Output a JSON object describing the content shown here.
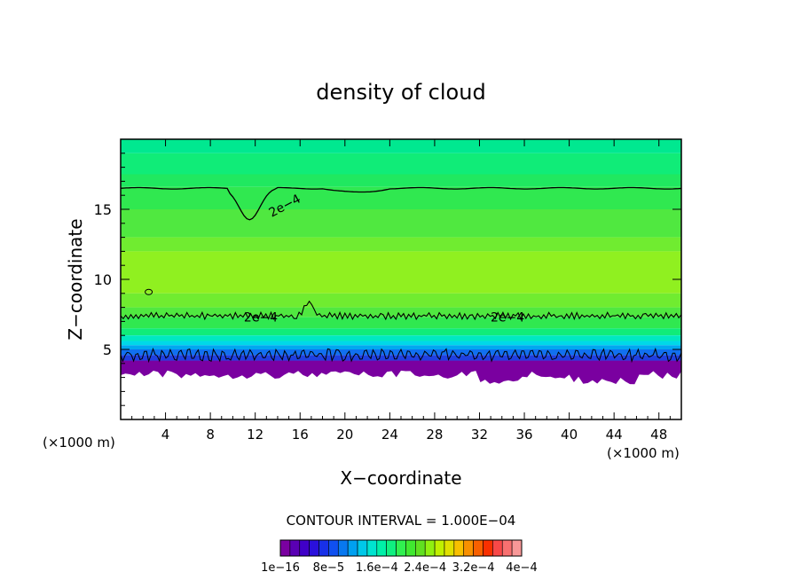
{
  "chart_data": {
    "type": "heatmap",
    "title": "density of cloud",
    "xlabel": "X−coordinate",
    "ylabel": "Z−coordinate",
    "x_unit_left": "(×1000 m)",
    "x_unit_right": "(×1000 m)",
    "xlim": [
      0,
      50
    ],
    "ylim": [
      0,
      20
    ],
    "x_ticks": [
      4,
      8,
      12,
      16,
      20,
      24,
      28,
      32,
      36,
      40,
      44,
      48
    ],
    "x_tick_labels": [
      "4",
      "8",
      "12",
      "16",
      "20",
      "24",
      "28",
      "32",
      "36",
      "40",
      "44",
      "48"
    ],
    "y_ticks": [
      5,
      10,
      15
    ],
    "y_tick_labels": [
      "5",
      "10",
      "15"
    ],
    "contour_labels": [
      "2e−4",
      "2e−4",
      "2e−4"
    ],
    "contour_interval_text": "CONTOUR INTERVAL = 1.000E−04",
    "colorbar": {
      "colors": [
        "#7a00a0",
        "#5a00b4",
        "#4000c8",
        "#2a10dc",
        "#1830e8",
        "#1050f0",
        "#0878f0",
        "#00a0f0",
        "#00c8e8",
        "#00e4d0",
        "#00f0a8",
        "#10f080",
        "#30f050",
        "#40e830",
        "#60e020",
        "#90f010",
        "#c0f000",
        "#e0e000",
        "#f8c000",
        "#f89000",
        "#f86000",
        "#f83000",
        "#f84848",
        "#f87070",
        "#f89898"
      ],
      "tick_labels": [
        "1e−16",
        "8e−5",
        "1.6e−4",
        "2.4e−4",
        "3.2e−4",
        "4e−4"
      ]
    }
  }
}
